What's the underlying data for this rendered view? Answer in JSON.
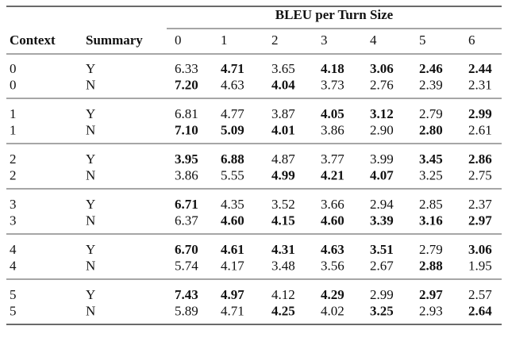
{
  "table": {
    "spanner": "BLEU per Turn Size",
    "headers": [
      "Context",
      "Summary",
      "0",
      "1",
      "2",
      "3",
      "4",
      "5",
      "6"
    ],
    "groups": [
      {
        "rows": [
          {
            "context": "0",
            "summary": "Y",
            "values": [
              "6.33",
              "4.71",
              "3.65",
              "4.18",
              "3.06",
              "2.46",
              "2.44"
            ],
            "bold": [
              false,
              true,
              false,
              true,
              true,
              true,
              true
            ]
          },
          {
            "context": "0",
            "summary": "N",
            "values": [
              "7.20",
              "4.63",
              "4.04",
              "3.73",
              "2.76",
              "2.39",
              "2.31"
            ],
            "bold": [
              true,
              false,
              true,
              false,
              false,
              false,
              false
            ]
          }
        ]
      },
      {
        "rows": [
          {
            "context": "1",
            "summary": "Y",
            "values": [
              "6.81",
              "4.77",
              "3.87",
              "4.05",
              "3.12",
              "2.79",
              "2.99"
            ],
            "bold": [
              false,
              false,
              false,
              true,
              true,
              false,
              true
            ]
          },
          {
            "context": "1",
            "summary": "N",
            "values": [
              "7.10",
              "5.09",
              "4.01",
              "3.86",
              "2.90",
              "2.80",
              "2.61"
            ],
            "bold": [
              true,
              true,
              true,
              false,
              false,
              true,
              false
            ]
          }
        ]
      },
      {
        "rows": [
          {
            "context": "2",
            "summary": "Y",
            "values": [
              "3.95",
              "6.88",
              "4.87",
              "3.77",
              "3.99",
              "3.45",
              "2.86"
            ],
            "bold": [
              true,
              true,
              false,
              false,
              false,
              true,
              true
            ]
          },
          {
            "context": "2",
            "summary": "N",
            "values": [
              "3.86",
              "5.55",
              "4.99",
              "4.21",
              "4.07",
              "3.25",
              "2.75"
            ],
            "bold": [
              false,
              false,
              true,
              true,
              true,
              false,
              false
            ]
          }
        ]
      },
      {
        "rows": [
          {
            "context": "3",
            "summary": "Y",
            "values": [
              "6.71",
              "4.35",
              "3.52",
              "3.66",
              "2.94",
              "2.85",
              "2.37"
            ],
            "bold": [
              true,
              false,
              false,
              false,
              false,
              false,
              false
            ]
          },
          {
            "context": "3",
            "summary": "N",
            "values": [
              "6.37",
              "4.60",
              "4.15",
              "4.60",
              "3.39",
              "3.16",
              "2.97"
            ],
            "bold": [
              false,
              true,
              true,
              true,
              true,
              true,
              true
            ]
          }
        ]
      },
      {
        "rows": [
          {
            "context": "4",
            "summary": "Y",
            "values": [
              "6.70",
              "4.61",
              "4.31",
              "4.63",
              "3.51",
              "2.79",
              "3.06"
            ],
            "bold": [
              true,
              true,
              true,
              true,
              true,
              false,
              true
            ]
          },
          {
            "context": "4",
            "summary": "N",
            "values": [
              "5.74",
              "4.17",
              "3.48",
              "3.56",
              "2.67",
              "2.88",
              "1.95"
            ],
            "bold": [
              false,
              false,
              false,
              false,
              false,
              true,
              false
            ]
          }
        ]
      },
      {
        "rows": [
          {
            "context": "5",
            "summary": "Y",
            "values": [
              "7.43",
              "4.97",
              "4.12",
              "4.29",
              "2.99",
              "2.97",
              "2.57"
            ],
            "bold": [
              true,
              true,
              false,
              true,
              false,
              true,
              false
            ]
          },
          {
            "context": "5",
            "summary": "N",
            "values": [
              "5.89",
              "4.71",
              "4.25",
              "4.02",
              "3.25",
              "2.93",
              "2.64"
            ],
            "bold": [
              false,
              false,
              true,
              false,
              true,
              false,
              true
            ]
          }
        ]
      }
    ]
  }
}
